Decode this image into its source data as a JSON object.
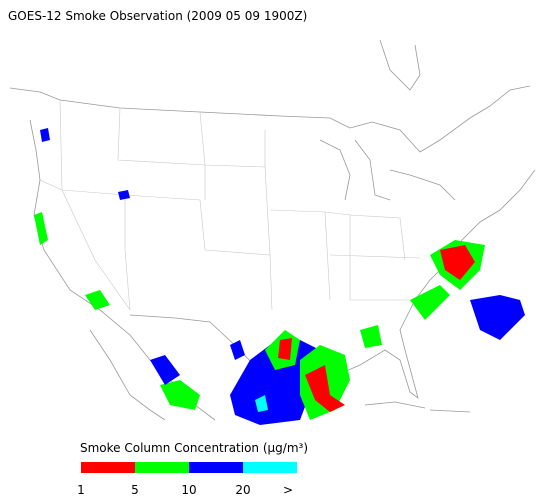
{
  "title": "GOES-12 Smoke Observation (2009 05 09  1900Z)",
  "legend": {
    "label": "Smoke Column Concentration (μg/m³)",
    "colors": [
      "#ff0000",
      "#00ff00",
      "#0000ff",
      "#00ffff"
    ],
    "ticks": [
      "1",
      "5",
      "10",
      "20",
      ">"
    ]
  }
}
